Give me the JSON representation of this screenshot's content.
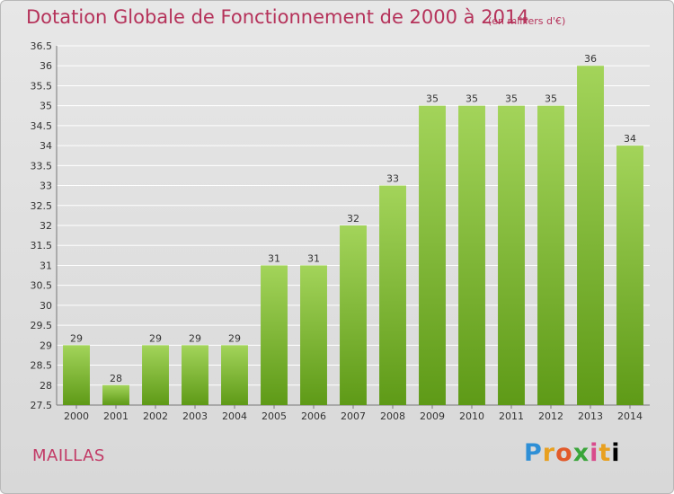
{
  "title": "Dotation Globale de Fonctionnement de 2000 à 2014",
  "unit_note": "(en milliers d'€)",
  "commune": "MAILLAS",
  "logo_text": "Proxiti",
  "colors": {
    "title": "#b5325a",
    "bar_top": "#a3d45a",
    "bar_bottom": "#5e9a17",
    "grid": "#ffffff"
  },
  "chart_data": {
    "type": "bar",
    "title": "Dotation Globale de Fonctionnement de 2000 à 2014",
    "xlabel": "",
    "ylabel": "",
    "categories": [
      "2000",
      "2001",
      "2002",
      "2003",
      "2004",
      "2005",
      "2006",
      "2007",
      "2008",
      "2009",
      "2010",
      "2011",
      "2012",
      "2013",
      "2014"
    ],
    "values": [
      29,
      28,
      29,
      29,
      29,
      31,
      31,
      32,
      33,
      35,
      35,
      35,
      35,
      36,
      34
    ],
    "ylim": [
      27.5,
      36.5
    ],
    "yticks": [
      "27.5",
      "28",
      "28.5",
      "29",
      "29.5",
      "30",
      "30.5",
      "31",
      "31.5",
      "32",
      "32.5",
      "33",
      "33.5",
      "34",
      "34.5",
      "35",
      "35.5",
      "36",
      "36.5"
    ],
    "grid": true,
    "legend": "none"
  }
}
